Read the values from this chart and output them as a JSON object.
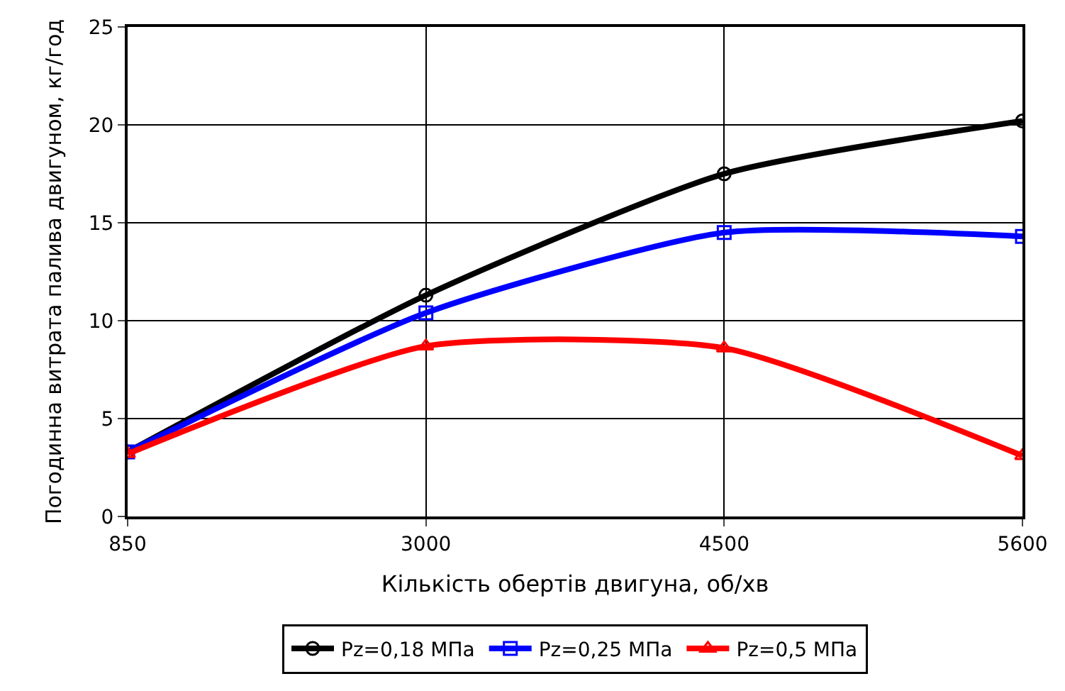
{
  "chart_data": {
    "type": "line",
    "xlabel": "Кількість обертів двигуна, об/хв",
    "ylabel": "Погодинна витрата палива двигуном, кг/год",
    "categories": [
      "850",
      "3000",
      "4500",
      "5600"
    ],
    "series": [
      {
        "name": "Pz=0,18 МПа",
        "color": "#000000",
        "marker": "circle",
        "values": [
          3.3,
          11.3,
          17.5,
          20.2
        ]
      },
      {
        "name": "Pz=0,25 МПа",
        "color": "#0000ff",
        "marker": "square",
        "values": [
          3.3,
          10.4,
          14.5,
          14.3
        ]
      },
      {
        "name": "Pz=0,5 МПа",
        "color": "#ff0000",
        "marker": "triangle",
        "values": [
          3.2,
          8.7,
          8.6,
          3.1
        ]
      }
    ],
    "ylim": [
      0,
      25
    ],
    "yticks": [
      0,
      5,
      10,
      15,
      20,
      25
    ],
    "grid": true,
    "legend": "bottom",
    "line_style": "solid"
  }
}
